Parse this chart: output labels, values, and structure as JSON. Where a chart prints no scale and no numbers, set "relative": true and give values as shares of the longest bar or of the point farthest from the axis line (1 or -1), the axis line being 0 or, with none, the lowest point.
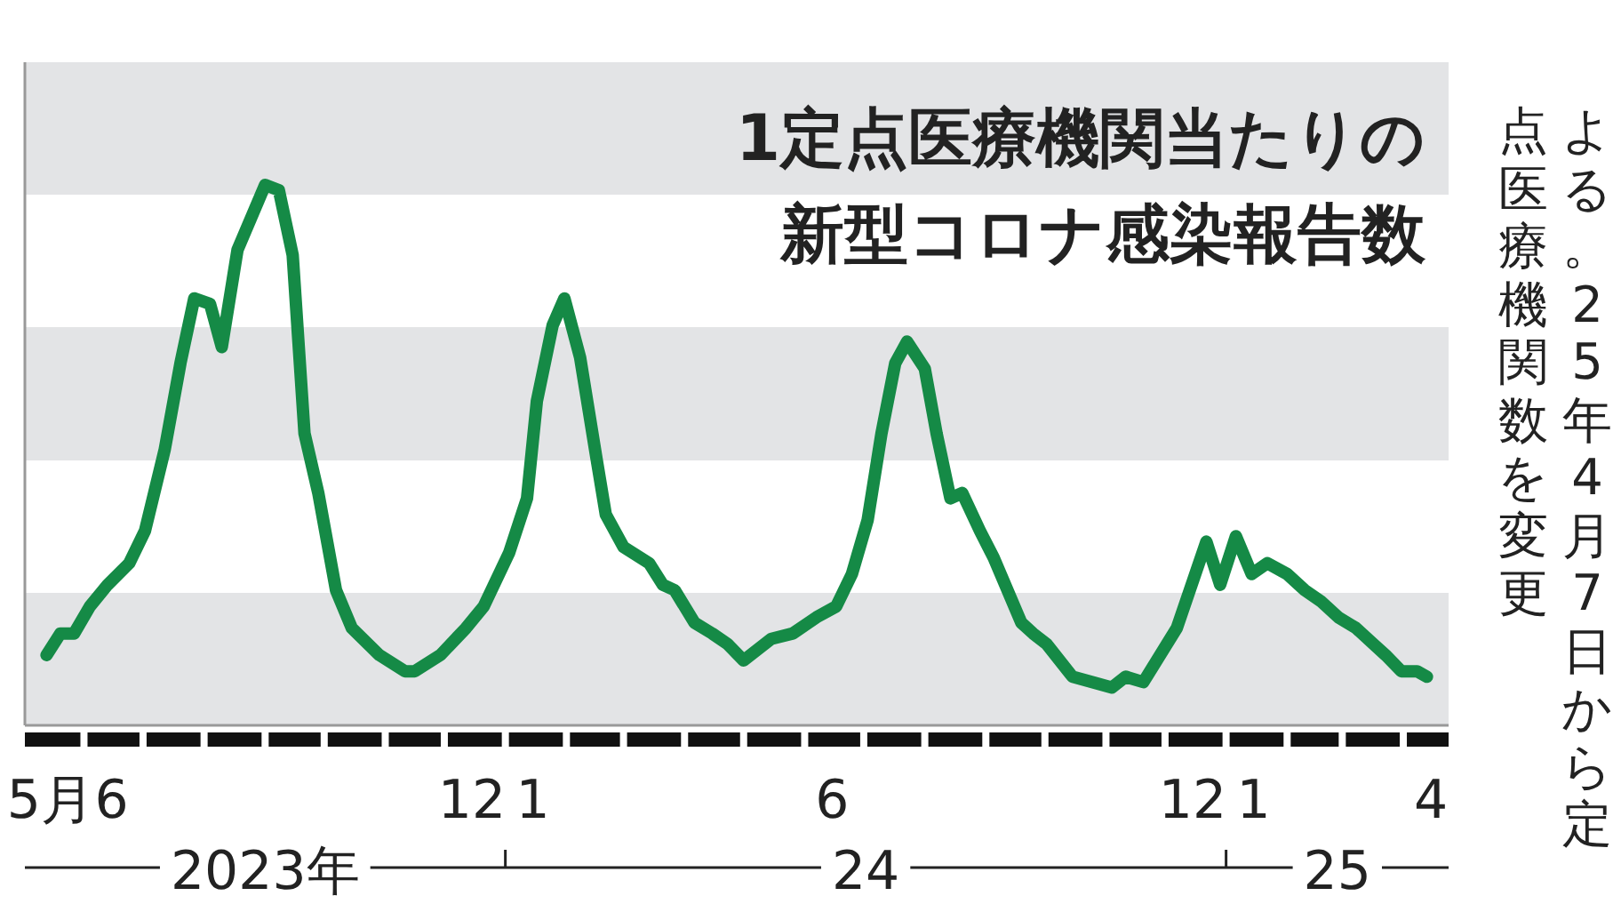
{
  "chart_data": {
    "type": "line",
    "title": "1定点医療機関当たりの新型コロナ感染報告数",
    "relative": true,
    "color": "#158a46",
    "xlim": [
      "2023-05-02",
      "2025-04-24"
    ],
    "xticks": [
      {
        "value": "2023-05-15",
        "label": "5月"
      },
      {
        "value": "2023-06-01",
        "label": null
      },
      {
        "value": "2023-06-15",
        "label": "6"
      },
      {
        "value": "2023-07-01",
        "label": null
      },
      {
        "value": "2023-08-01",
        "label": null
      },
      {
        "value": "2023-09-01",
        "label": null
      },
      {
        "value": "2023-10-01",
        "label": null
      },
      {
        "value": "2023-11-01",
        "label": null
      },
      {
        "value": "2023-12-01",
        "label": null
      },
      {
        "value": "2023-12-15",
        "label": "12"
      },
      {
        "value": "2024-01-01",
        "label": null
      },
      {
        "value": "2024-01-15",
        "label": "1"
      },
      {
        "value": "2024-02-01",
        "label": null
      },
      {
        "value": "2024-03-01",
        "label": null
      },
      {
        "value": "2024-04-01",
        "label": null
      },
      {
        "value": "2024-05-01",
        "label": null
      },
      {
        "value": "2024-06-01",
        "label": null
      },
      {
        "value": "2024-06-15",
        "label": "6"
      },
      {
        "value": "2024-07-01",
        "label": null
      },
      {
        "value": "2024-08-01",
        "label": null
      },
      {
        "value": "2024-09-01",
        "label": null
      },
      {
        "value": "2024-10-01",
        "label": null
      },
      {
        "value": "2024-11-01",
        "label": null
      },
      {
        "value": "2024-12-01",
        "label": null
      },
      {
        "value": "2024-12-15",
        "label": "12"
      },
      {
        "value": "2025-01-01",
        "label": null
      },
      {
        "value": "2025-01-15",
        "label": "1"
      },
      {
        "value": "2025-02-01",
        "label": null
      },
      {
        "value": "2025-03-01",
        "label": null
      },
      {
        "value": "2025-04-01",
        "label": null
      },
      {
        "value": "2025-04-15",
        "label": "4"
      }
    ],
    "annotations": [
      "2023年",
      "24",
      "25",
      "よる。25年4月7日から定点医療機関数を変更"
    ],
    "x": [
      "2023-05-13",
      "2023-05-20",
      "2023-05-27",
      "2023-06-04",
      "2023-06-13",
      "2023-06-24",
      "2023-07-02",
      "2023-07-12",
      "2023-07-20",
      "2023-07-27",
      "2023-08-04",
      "2023-08-10",
      "2023-08-18",
      "2023-08-25",
      "2023-09-01",
      "2023-09-08",
      "2023-09-15",
      "2023-09-21",
      "2023-09-28",
      "2023-10-07",
      "2023-10-15",
      "2023-10-29",
      "2023-11-11",
      "2023-11-16",
      "2023-11-29",
      "2023-12-12",
      "2023-12-21",
      "2024-01-03",
      "2024-01-12",
      "2024-01-17",
      "2024-01-25",
      "2024-01-31",
      "2024-02-08",
      "2024-02-16",
      "2024-02-21",
      "2024-03-01",
      "2024-03-14",
      "2024-03-21",
      "2024-03-27",
      "2024-04-06",
      "2024-04-15",
      "2024-04-23",
      "2024-05-01",
      "2024-05-15",
      "2024-05-26",
      "2024-06-07",
      "2024-06-17",
      "2024-06-25",
      "2024-07-03",
      "2024-07-10",
      "2024-07-17",
      "2024-07-23",
      "2024-08-01",
      "2024-08-07",
      "2024-08-14",
      "2024-08-20",
      "2024-08-29",
      "2024-09-05",
      "2024-09-19",
      "2024-09-25",
      "2024-10-02",
      "2024-10-15",
      "2024-11-04",
      "2024-11-11",
      "2024-11-20",
      "2024-12-07",
      "2024-12-22",
      "2024-12-29",
      "2025-01-06",
      "2025-01-14",
      "2025-01-22",
      "2025-02-01",
      "2025-02-10",
      "2025-02-18",
      "2025-02-27",
      "2025-03-08",
      "2025-03-17",
      "2025-03-23",
      "2025-03-31",
      "2025-04-08",
      "2025-04-13"
    ],
    "values": [
      0.13,
      0.17,
      0.17,
      0.22,
      0.26,
      0.3,
      0.36,
      0.51,
      0.67,
      0.79,
      0.78,
      0.7,
      0.88,
      0.94,
      1.0,
      0.99,
      0.87,
      0.54,
      0.43,
      0.25,
      0.18,
      0.13,
      0.1,
      0.1,
      0.13,
      0.18,
      0.22,
      0.32,
      0.42,
      0.6,
      0.74,
      0.79,
      0.68,
      0.5,
      0.39,
      0.33,
      0.3,
      0.26,
      0.25,
      0.19,
      0.17,
      0.15,
      0.12,
      0.16,
      0.17,
      0.2,
      0.22,
      0.28,
      0.38,
      0.54,
      0.67,
      0.71,
      0.66,
      0.54,
      0.42,
      0.43,
      0.36,
      0.31,
      0.19,
      0.17,
      0.15,
      0.09,
      0.07,
      0.09,
      0.08,
      0.18,
      0.34,
      0.26,
      0.35,
      0.28,
      0.3,
      0.28,
      0.25,
      0.23,
      0.2,
      0.18,
      0.15,
      0.13,
      0.1,
      0.1,
      0.09
    ]
  }
}
